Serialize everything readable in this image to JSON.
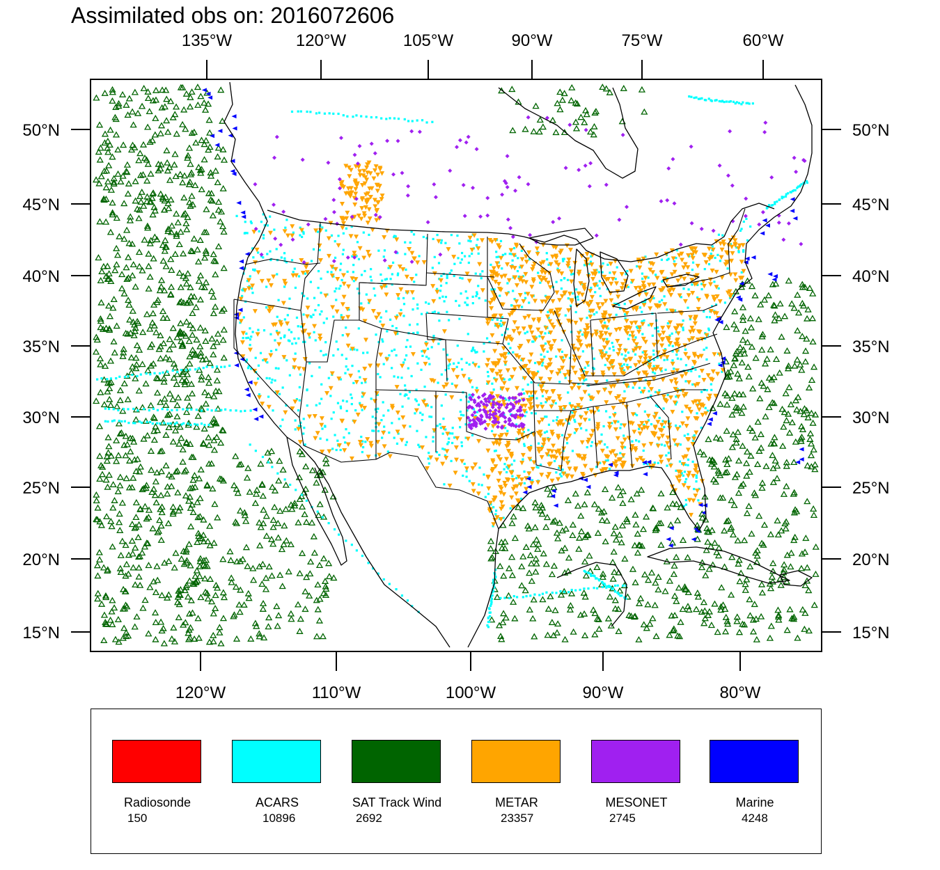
{
  "title": "Assimilated obs on: 2016072606",
  "axes": {
    "top_lon_labels": [
      "135°W",
      "120°W",
      "105°W",
      "90°W",
      "75°W",
      "60°W"
    ],
    "bottom_lon_labels": [
      "120°W",
      "110°W",
      "100°W",
      "90°W",
      "80°W"
    ],
    "left_lat_labels": [
      "50°N",
      "45°N",
      "40°N",
      "35°N",
      "30°N",
      "25°N",
      "20°N",
      "15°N"
    ],
    "right_lat_labels": [
      "50°N",
      "45°N",
      "40°N",
      "35°N",
      "30°N",
      "25°N",
      "20°N",
      "15°N"
    ]
  },
  "legend": [
    {
      "name": "Radiosonde",
      "count": "150",
      "color": "#ff0000"
    },
    {
      "name": "ACARS",
      "count": "10896",
      "color": "#00ffff"
    },
    {
      "name": "SAT Track Wind",
      "count": "2692",
      "color": "#006400"
    },
    {
      "name": "METAR",
      "count": "23357",
      "color": "#ffa500"
    },
    {
      "name": "MESONET",
      "count": "2745",
      "color": "#a020f0"
    },
    {
      "name": "Marine",
      "count": "4248",
      "color": "#0000ff"
    }
  ],
  "colors": {
    "acars": "#00ffff",
    "sat_track_wind": "#006400",
    "metar": "#ffa500",
    "mesonet": "#a020f0",
    "marine": "#0000ff",
    "map_lines": "#000000"
  }
}
